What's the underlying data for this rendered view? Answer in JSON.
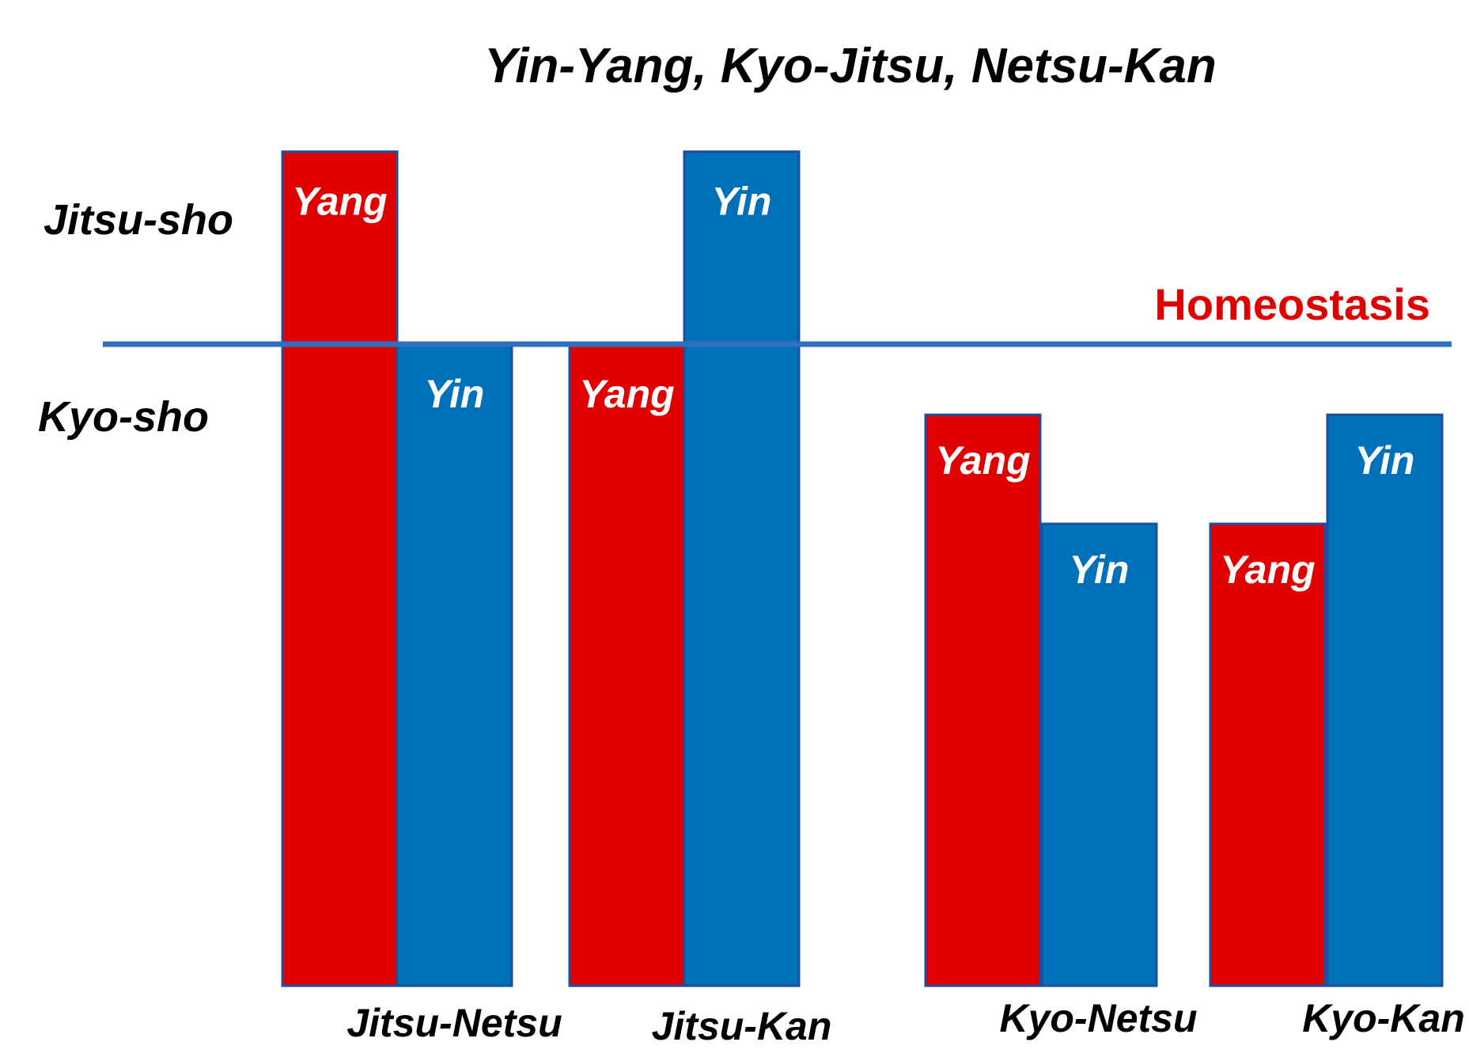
{
  "chart_data": {
    "type": "bar",
    "title": "Yin-Yang, Kyo-Jitsu, Netsu-Kan",
    "xlabel": "",
    "ylabel": "",
    "y_zone_labels": {
      "upper": "Jitsu-sho",
      "lower": "Kyo-sho"
    },
    "reference_line": {
      "label": "Homeostasis",
      "value": 100
    },
    "ylim": [
      0,
      125
    ],
    "categories": [
      "Jitsu-Netsu",
      "Jitsu-Kan",
      "Kyo-Netsu",
      "Kyo-Kan"
    ],
    "series": [
      {
        "name": "Yang",
        "bar_label": "Yang",
        "values": [
          130,
          100,
          89,
          72
        ]
      },
      {
        "name": "Yin",
        "bar_label": "Yin",
        "values": [
          100,
          130,
          72,
          89
        ]
      }
    ],
    "grid": false,
    "legend": "none"
  },
  "colors": {
    "yang": "#e00000",
    "yin": "#0070b8",
    "bar_edge": "#1f4e9e",
    "homeostasis_line": "#2f6fbd",
    "homeostasis_text": "#e00000",
    "text": "#000000",
    "bar_text": "#ffffff"
  }
}
